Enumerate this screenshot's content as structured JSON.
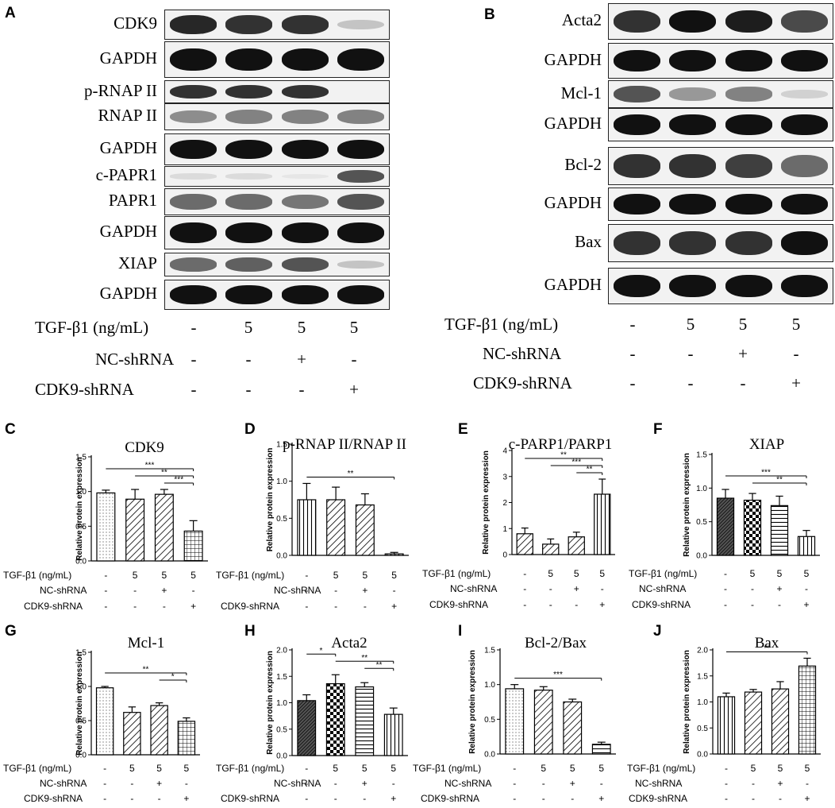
{
  "panels": {
    "A": {
      "letter": "A",
      "blots": [
        {
          "label": "CDK9",
          "intensities": [
            0.9,
            0.85,
            0.85,
            0.2
          ]
        },
        {
          "label": "GAPDH",
          "intensities": [
            1,
            1,
            1,
            1
          ]
        },
        {
          "label": "p-RNAP II",
          "intensities": [
            0.85,
            0.85,
            0.85,
            0
          ]
        },
        {
          "label": "RNAP II",
          "intensities": [
            0.45,
            0.5,
            0.5,
            0.5
          ]
        },
        {
          "label": "GAPDH",
          "intensities": [
            1,
            1,
            1,
            1
          ]
        },
        {
          "label": "c-PAPR1",
          "intensities": [
            0.1,
            0.1,
            0.05,
            0.7
          ]
        },
        {
          "label": "PAPR1",
          "intensities": [
            0.6,
            0.6,
            0.55,
            0.7
          ]
        },
        {
          "label": "GAPDH",
          "intensities": [
            1,
            1,
            1,
            1
          ]
        },
        {
          "label": "XIAP",
          "intensities": [
            0.6,
            0.65,
            0.7,
            0.2
          ]
        },
        {
          "label": "GAPDH",
          "intensities": [
            1,
            1,
            1,
            1
          ]
        }
      ],
      "treatments": [
        {
          "label": "TGF-β1 (ng/mL)",
          "values": [
            "-",
            "5",
            "5",
            "5"
          ]
        },
        {
          "label": "NC-shRNA",
          "values": [
            "-",
            "-",
            "+",
            "-"
          ]
        },
        {
          "label": "CDK9-shRNA",
          "values": [
            "-",
            "-",
            "-",
            "+"
          ]
        }
      ]
    },
    "B": {
      "letter": "B",
      "blots": [
        {
          "label": "Acta2",
          "intensities": [
            0.85,
            1,
            0.95,
            0.75
          ]
        },
        {
          "label": "GAPDH",
          "intensities": [
            1,
            1,
            1,
            1
          ]
        },
        {
          "label": "Mcl-1",
          "intensities": [
            0.7,
            0.4,
            0.5,
            0.15
          ]
        },
        {
          "label": "GAPDH",
          "intensities": [
            1,
            1,
            1,
            1
          ]
        },
        {
          "label": "Bcl-2",
          "intensities": [
            0.85,
            0.85,
            0.8,
            0.6
          ]
        },
        {
          "label": "GAPDH",
          "intensities": [
            1,
            1,
            1,
            1
          ]
        },
        {
          "label": "Bax",
          "intensities": [
            0.85,
            0.85,
            0.85,
            1
          ]
        },
        {
          "label": "GAPDH",
          "intensities": [
            1,
            1,
            1,
            1
          ]
        }
      ],
      "treatments": [
        {
          "label": "TGF-β1 (ng/mL)",
          "values": [
            "-",
            "5",
            "5",
            "5"
          ]
        },
        {
          "label": "NC-shRNA",
          "values": [
            "-",
            "-",
            "+",
            "-"
          ]
        },
        {
          "label": "CDK9-shRNA",
          "values": [
            "-",
            "-",
            "-",
            "+"
          ]
        }
      ]
    }
  },
  "treatment_rows": [
    {
      "label": "TGF-β1 (ng/mL)",
      "values": [
        "-",
        "5",
        "5",
        "5"
      ]
    },
    {
      "label": "NC-shRNA",
      "values": [
        "-",
        "-",
        "+",
        "-"
      ]
    },
    {
      "label": "CDK9-shRNA",
      "values": [
        "-",
        "-",
        "-",
        "+"
      ]
    }
  ],
  "chart_data": [
    {
      "panel": "C",
      "type": "bar",
      "title": "CDK9",
      "ylabel": "Relative protein expression",
      "ylim": [
        0,
        1.5
      ],
      "yticks": [
        "0.0",
        "0.5",
        "1.0",
        "1.5"
      ],
      "values": [
        0.98,
        0.89,
        0.96,
        0.43
      ],
      "errors": [
        0.04,
        0.14,
        0.07,
        0.15
      ],
      "patterns": [
        "dots",
        "diag",
        "diag",
        "grid"
      ],
      "significance": [
        {
          "from": 0,
          "to": 3,
          "label": "***"
        },
        {
          "from": 1,
          "to": 3,
          "label": "**"
        },
        {
          "from": 2,
          "to": 3,
          "label": "***"
        }
      ]
    },
    {
      "panel": "D",
      "type": "bar",
      "title": "p-RNAP II/RNAP II",
      "ylabel": "Relative protein expression",
      "ylim": [
        0,
        1.5
      ],
      "yticks": [
        "0.0",
        "0.5",
        "1.0",
        "1.5"
      ],
      "values": [
        0.75,
        0.75,
        0.68,
        0.02
      ],
      "errors": [
        0.22,
        0.17,
        0.15,
        0.02
      ],
      "patterns": [
        "vlines",
        "diag",
        "diag",
        "vlines"
      ],
      "significance": [
        {
          "from": 0,
          "to": 3,
          "label": "**"
        }
      ]
    },
    {
      "panel": "E",
      "type": "bar",
      "title": "c-PARP1/PARP1",
      "ylabel": "Relative protein expression",
      "ylim": [
        0,
        4
      ],
      "yticks": [
        "0",
        "1",
        "2",
        "3",
        "4"
      ],
      "values": [
        0.8,
        0.4,
        0.68,
        2.32
      ],
      "errors": [
        0.22,
        0.2,
        0.18,
        0.58
      ],
      "patterns": [
        "diag",
        "diag",
        "diag",
        "vlines"
      ],
      "significance": [
        {
          "from": 0,
          "to": 3,
          "label": "**"
        },
        {
          "from": 1,
          "to": 3,
          "label": "***"
        },
        {
          "from": 2,
          "to": 3,
          "label": "**"
        }
      ]
    },
    {
      "panel": "F",
      "type": "bar",
      "title": "XIAP",
      "ylabel": "Relative protein expression",
      "ylim": [
        0,
        1.5
      ],
      "yticks": [
        "0.0",
        "0.5",
        "1.0",
        "1.5"
      ],
      "values": [
        0.85,
        0.82,
        0.74,
        0.28
      ],
      "errors": [
        0.13,
        0.1,
        0.14,
        0.09
      ],
      "patterns": [
        "dense",
        "check",
        "hlines",
        "vlines"
      ],
      "significance": [
        {
          "from": 0,
          "to": 3,
          "label": "***"
        },
        {
          "from": 1,
          "to": 3,
          "label": "**"
        }
      ]
    },
    {
      "panel": "G",
      "type": "bar",
      "title": "Mcl-1",
      "ylabel": "Relative protein expression",
      "ylim": [
        0,
        1.5
      ],
      "yticks": [
        "0.0",
        "0.5",
        "1.0",
        "1.5"
      ],
      "values": [
        0.98,
        0.62,
        0.72,
        0.49
      ],
      "errors": [
        0.02,
        0.08,
        0.04,
        0.05
      ],
      "patterns": [
        "dots",
        "diag",
        "diag",
        "grid"
      ],
      "significance": [
        {
          "from": 0,
          "to": 3,
          "label": "**"
        },
        {
          "from": 2,
          "to": 3,
          "label": "*"
        }
      ]
    },
    {
      "panel": "H",
      "type": "bar",
      "title": "Acta2",
      "ylabel": "Relative protein expression",
      "ylim": [
        0,
        2.0
      ],
      "yticks": [
        "0.0",
        "0.5",
        "1.0",
        "1.5",
        "2.0"
      ],
      "values": [
        1.04,
        1.36,
        1.3,
        0.78
      ],
      "errors": [
        0.11,
        0.17,
        0.08,
        0.12
      ],
      "patterns": [
        "dense",
        "check",
        "hlines",
        "vlines"
      ],
      "significance": [
        {
          "from": 0,
          "to": 1,
          "label": "*"
        },
        {
          "from": 1,
          "to": 3,
          "label": "**"
        },
        {
          "from": 2,
          "to": 3,
          "label": "**"
        }
      ]
    },
    {
      "panel": "I",
      "type": "bar",
      "title": "Bcl-2/Bax",
      "ylabel": "Relative protein expression",
      "ylim": [
        0,
        1.5
      ],
      "yticks": [
        "0.0",
        "0.5",
        "1.0",
        "1.5"
      ],
      "values": [
        0.94,
        0.92,
        0.75,
        0.14
      ],
      "errors": [
        0.06,
        0.05,
        0.04,
        0.03
      ],
      "patterns": [
        "dots",
        "diag",
        "diag",
        "hlines"
      ],
      "significance": [
        {
          "from": 0,
          "to": 3,
          "label": "***"
        }
      ]
    },
    {
      "panel": "J",
      "type": "bar",
      "title": "Bax",
      "ylabel": "Relative protein expression",
      "ylim": [
        0,
        2.0
      ],
      "yticks": [
        "0.0",
        "0.5",
        "1.0",
        "1.5",
        "2.0"
      ],
      "values": [
        1.1,
        1.19,
        1.25,
        1.69
      ],
      "errors": [
        0.07,
        0.05,
        0.14,
        0.15
      ],
      "patterns": [
        "vlines",
        "diag",
        "diag",
        "grid"
      ],
      "significance": [
        {
          "from": 0,
          "to": 3,
          "label": "**"
        }
      ]
    }
  ]
}
